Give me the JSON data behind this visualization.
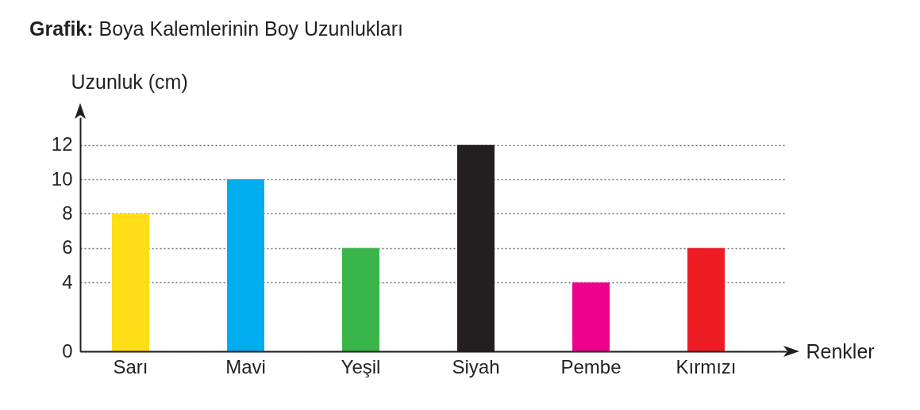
{
  "chart_data": {
    "type": "bar",
    "title": "Grafik: Boya Kalemlerinin Boy Uzunlukları",
    "xlabel": "Renkler",
    "ylabel": "Uzunluk (cm)",
    "categories": [
      "Sarı",
      "Mavi",
      "Yeşil",
      "Siyah",
      "Pembe",
      "Kırmızı"
    ],
    "values": [
      8,
      10,
      6,
      12,
      4,
      6
    ],
    "colors": [
      "#ffdd17",
      "#00aeef",
      "#39b54a",
      "#231f20",
      "#ec008c",
      "#ed1c24"
    ],
    "ylim": [
      0,
      13.6
    ],
    "yticks": [
      0,
      4,
      6,
      8,
      10,
      12
    ],
    "grid": "y"
  }
}
